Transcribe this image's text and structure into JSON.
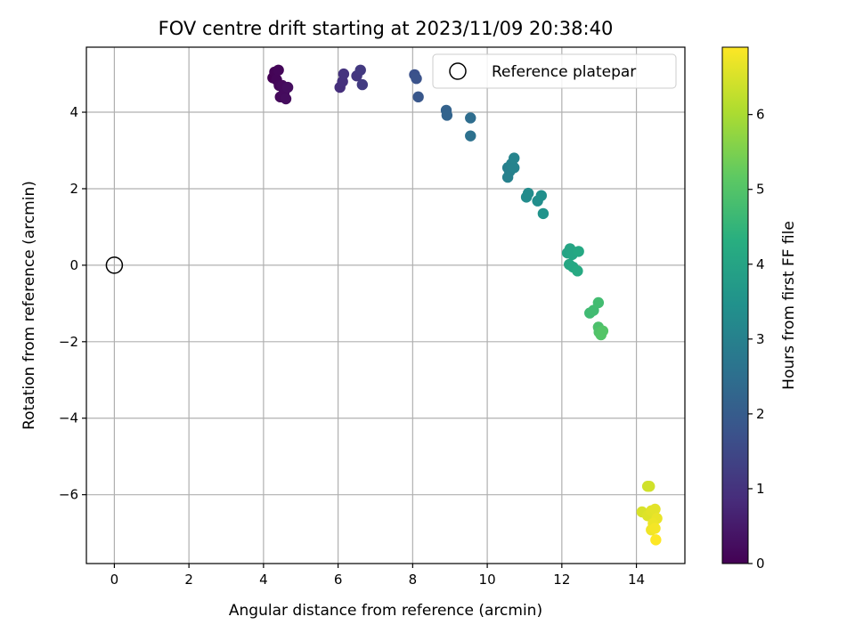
{
  "chart_data": {
    "type": "scatter",
    "title": "FOV centre drift starting at 2023/11/09 20:38:40",
    "xlabel": "Angular distance from reference (arcmin)",
    "ylabel": "Rotation from reference (arcmin)",
    "xlim": [
      -0.75,
      15.3
    ],
    "ylim": [
      -7.8,
      5.7
    ],
    "xticks": [
      0,
      2,
      4,
      6,
      8,
      10,
      12,
      14
    ],
    "yticks": [
      -6,
      -4,
      -2,
      0,
      2,
      4
    ],
    "grid": true,
    "legend": {
      "position": "top-right",
      "entries": [
        "Reference platepar"
      ]
    },
    "reference_point": {
      "x": 0,
      "y": 0,
      "label": "Reference platepar"
    },
    "colorbar": {
      "label": "Hours from first FF file",
      "range": [
        0,
        6.9
      ],
      "ticks": [
        0,
        1,
        2,
        3,
        4,
        5,
        6
      ],
      "colormap": "viridis"
    },
    "points": [
      {
        "x": 4.25,
        "y": 4.9,
        "t": 0.0
      },
      {
        "x": 4.3,
        "y": 5.05,
        "t": 0.05
      },
      {
        "x": 4.35,
        "y": 4.85,
        "t": 0.08
      },
      {
        "x": 4.4,
        "y": 5.1,
        "t": 0.1
      },
      {
        "x": 4.42,
        "y": 4.7,
        "t": 0.12
      },
      {
        "x": 4.45,
        "y": 4.4,
        "t": 0.15
      },
      {
        "x": 4.5,
        "y": 4.7,
        "t": 0.18
      },
      {
        "x": 4.55,
        "y": 4.5,
        "t": 0.2
      },
      {
        "x": 4.6,
        "y": 4.35,
        "t": 0.23
      },
      {
        "x": 4.65,
        "y": 4.65,
        "t": 0.25
      },
      {
        "x": 6.05,
        "y": 4.65,
        "t": 0.9
      },
      {
        "x": 6.12,
        "y": 4.8,
        "t": 0.95
      },
      {
        "x": 6.15,
        "y": 5.0,
        "t": 1.0
      },
      {
        "x": 6.5,
        "y": 4.95,
        "t": 1.1
      },
      {
        "x": 6.6,
        "y": 5.1,
        "t": 1.15
      },
      {
        "x": 6.65,
        "y": 4.72,
        "t": 1.2
      },
      {
        "x": 8.05,
        "y": 4.98,
        "t": 1.7
      },
      {
        "x": 8.1,
        "y": 4.88,
        "t": 1.75
      },
      {
        "x": 8.15,
        "y": 4.4,
        "t": 1.85
      },
      {
        "x": 8.9,
        "y": 4.05,
        "t": 2.15
      },
      {
        "x": 8.92,
        "y": 3.92,
        "t": 2.2
      },
      {
        "x": 9.55,
        "y": 3.85,
        "t": 2.45
      },
      {
        "x": 9.55,
        "y": 3.38,
        "t": 2.55
      },
      {
        "x": 10.55,
        "y": 2.55,
        "t": 2.95
      },
      {
        "x": 10.6,
        "y": 2.45,
        "t": 2.98
      },
      {
        "x": 10.55,
        "y": 2.3,
        "t": 3.0
      },
      {
        "x": 10.65,
        "y": 2.65,
        "t": 3.02
      },
      {
        "x": 10.72,
        "y": 2.55,
        "t": 3.05
      },
      {
        "x": 10.72,
        "y": 2.8,
        "t": 3.08
      },
      {
        "x": 11.05,
        "y": 1.78,
        "t": 3.3
      },
      {
        "x": 11.1,
        "y": 1.88,
        "t": 3.32
      },
      {
        "x": 11.35,
        "y": 1.68,
        "t": 3.38
      },
      {
        "x": 11.45,
        "y": 1.82,
        "t": 3.42
      },
      {
        "x": 11.5,
        "y": 1.35,
        "t": 3.5
      },
      {
        "x": 12.15,
        "y": 0.32,
        "t": 4.0
      },
      {
        "x": 12.22,
        "y": 0.43,
        "t": 4.02
      },
      {
        "x": 12.28,
        "y": 0.28,
        "t": 4.05
      },
      {
        "x": 12.2,
        "y": 0.02,
        "t": 4.08
      },
      {
        "x": 12.3,
        "y": -0.05,
        "t": 4.1
      },
      {
        "x": 12.45,
        "y": 0.36,
        "t": 4.12
      },
      {
        "x": 12.42,
        "y": -0.15,
        "t": 4.15
      },
      {
        "x": 12.75,
        "y": -1.25,
        "t": 4.7
      },
      {
        "x": 12.85,
        "y": -1.18,
        "t": 4.72
      },
      {
        "x": 12.98,
        "y": -0.98,
        "t": 4.75
      },
      {
        "x": 12.98,
        "y": -1.62,
        "t": 4.9
      },
      {
        "x": 13.0,
        "y": -1.75,
        "t": 4.95
      },
      {
        "x": 13.05,
        "y": -1.82,
        "t": 5.0
      },
      {
        "x": 13.1,
        "y": -1.72,
        "t": 5.02
      },
      {
        "x": 14.3,
        "y": -5.78,
        "t": 6.4
      },
      {
        "x": 14.35,
        "y": -5.78,
        "t": 6.42
      },
      {
        "x": 14.15,
        "y": -6.45,
        "t": 6.5
      },
      {
        "x": 14.3,
        "y": -6.55,
        "t": 6.55
      },
      {
        "x": 14.4,
        "y": -6.42,
        "t": 6.6
      },
      {
        "x": 14.5,
        "y": -6.38,
        "t": 6.62
      },
      {
        "x": 14.55,
        "y": -6.62,
        "t": 6.68
      },
      {
        "x": 14.45,
        "y": -6.75,
        "t": 6.72
      },
      {
        "x": 14.4,
        "y": -6.92,
        "t": 6.75
      },
      {
        "x": 14.5,
        "y": -6.88,
        "t": 6.8
      },
      {
        "x": 14.52,
        "y": -7.18,
        "t": 6.9
      }
    ]
  }
}
